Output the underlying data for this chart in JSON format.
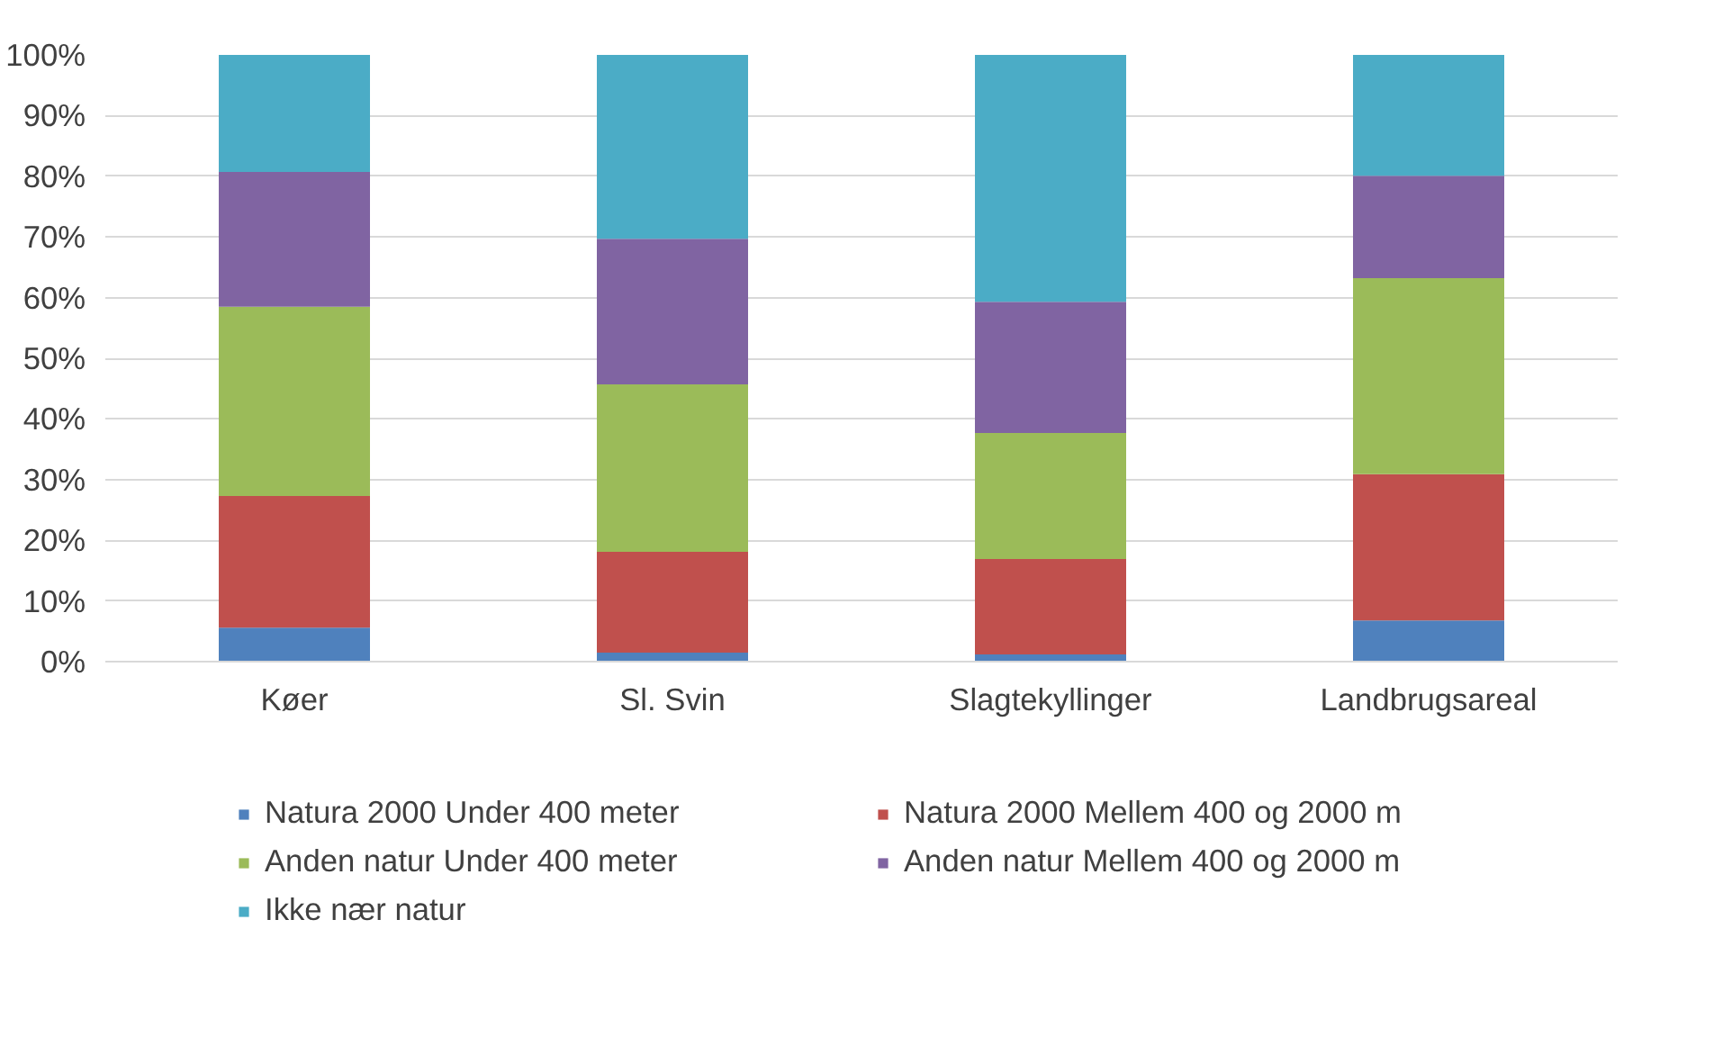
{
  "chart_data": {
    "type": "bar",
    "stacked": true,
    "categories": [
      "Køer",
      "Sl. Svin",
      "Slagtekyllinger",
      "Landbrugsareal"
    ],
    "ylim": [
      0,
      100
    ],
    "yticks": [
      {
        "value": 0,
        "label": "0%"
      },
      {
        "value": 10,
        "label": "10%"
      },
      {
        "value": 20,
        "label": "20%"
      },
      {
        "value": 30,
        "label": "30%"
      },
      {
        "value": 40,
        "label": "40%"
      },
      {
        "value": 50,
        "label": "50%"
      },
      {
        "value": 60,
        "label": "60%"
      },
      {
        "value": 70,
        "label": "70%"
      },
      {
        "value": 80,
        "label": "80%"
      },
      {
        "value": 90,
        "label": "90%"
      },
      {
        "value": 100,
        "label": "100%"
      }
    ],
    "grid": "y",
    "legend": "bottom",
    "series": [
      {
        "name": "Natura 2000 Under 400 meter",
        "color": "#4f81bd",
        "values": [
          5.6,
          1.5,
          1.2,
          6.8
        ]
      },
      {
        "name": "Natura 2000 Mellem 400 og 2000 m",
        "color": "#c0504d",
        "values": [
          21.7,
          16.6,
          15.7,
          24.1
        ]
      },
      {
        "name": "Anden natur Under 400 meter",
        "color": "#9bbb59",
        "values": [
          31.2,
          27.6,
          20.8,
          32.3
        ]
      },
      {
        "name": "Anden natur Mellem 400 og 2000 m",
        "color": "#8064a2",
        "values": [
          22.2,
          24.0,
          21.6,
          16.9
        ]
      },
      {
        "name": "Ikke nær natur",
        "color": "#4bacc6",
        "values": [
          19.3,
          30.3,
          40.7,
          19.9
        ]
      }
    ]
  }
}
